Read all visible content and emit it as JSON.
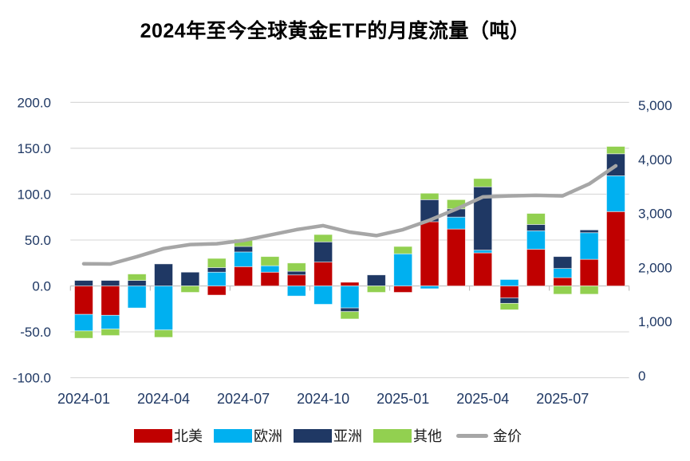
{
  "title": "2024年至今全球黄金ETF的月度流量（吨）",
  "chart_data": {
    "type": "bar",
    "subtype": "stacked-bar-with-line-overlay",
    "title": "2024年至今全球黄金ETF的月度流量（吨）",
    "categories": [
      "2024-01",
      "2024-02",
      "2024-03",
      "2024-04",
      "2024-05",
      "2024-06",
      "2024-07",
      "2024-08",
      "2024-09",
      "2024-10",
      "2024-11",
      "2024-12",
      "2025-01",
      "2025-02",
      "2025-03",
      "2025-04",
      "2025-05",
      "2025-06",
      "2025-07",
      "2025-08",
      "2025-09"
    ],
    "x_tick_every": 3,
    "visible_x_ticks": [
      "2024-01",
      "2024-04",
      "2024-07",
      "2024-10",
      "2025-01",
      "2025-04",
      "2025-07"
    ],
    "series": [
      {
        "name": "北美",
        "color": "#C00000",
        "values": [
          -31,
          -32,
          0,
          0,
          0,
          -10,
          21,
          15,
          12,
          26,
          4,
          0,
          -7,
          70,
          62,
          36,
          -13,
          40,
          9,
          29,
          81
        ]
      },
      {
        "name": "欧洲",
        "color": "#00B0F0",
        "values": [
          -18,
          -15,
          -24,
          -48,
          0,
          15,
          16,
          7,
          -11,
          -20,
          -24,
          0,
          35,
          -3,
          13,
          3,
          7,
          20,
          10,
          29,
          39
        ]
      },
      {
        "name": "亚洲",
        "color": "#1F3864",
        "values": [
          6,
          6,
          6,
          24,
          15,
          5,
          6,
          0,
          4,
          22,
          -4,
          12,
          0,
          24,
          9,
          69,
          -6,
          7,
          13,
          3,
          24
        ]
      },
      {
        "name": "其他",
        "color": "#92D050",
        "values": [
          -8,
          -7,
          7,
          -8,
          -7,
          10,
          8,
          10,
          9,
          8,
          -8,
          -7,
          8,
          7,
          10,
          9,
          -7,
          12,
          -9,
          -9,
          8
        ]
      }
    ],
    "line_series": {
      "name": "金价",
      "color": "#A6A6A6",
      "axis": "right",
      "values": [
        2070,
        2065,
        2200,
        2350,
        2425,
        2440,
        2500,
        2600,
        2700,
        2775,
        2655,
        2590,
        2700,
        2875,
        3080,
        3305,
        3325,
        3335,
        3325,
        3545,
        3880
      ]
    },
    "left_axis": {
      "min": -100,
      "max": 200,
      "step": 50,
      "format": "0.0"
    },
    "right_axis": {
      "min": 0,
      "max": 5000,
      "step": 1000,
      "format": "#,##0"
    },
    "grid": true,
    "legend_position": "bottom",
    "colors": {
      "grid": "#D9D9D9",
      "zero_line": "#C3C3C3",
      "tick_mark": "#BFBFBF",
      "axis_text": "#1F3864",
      "title_text": "#000000"
    }
  }
}
